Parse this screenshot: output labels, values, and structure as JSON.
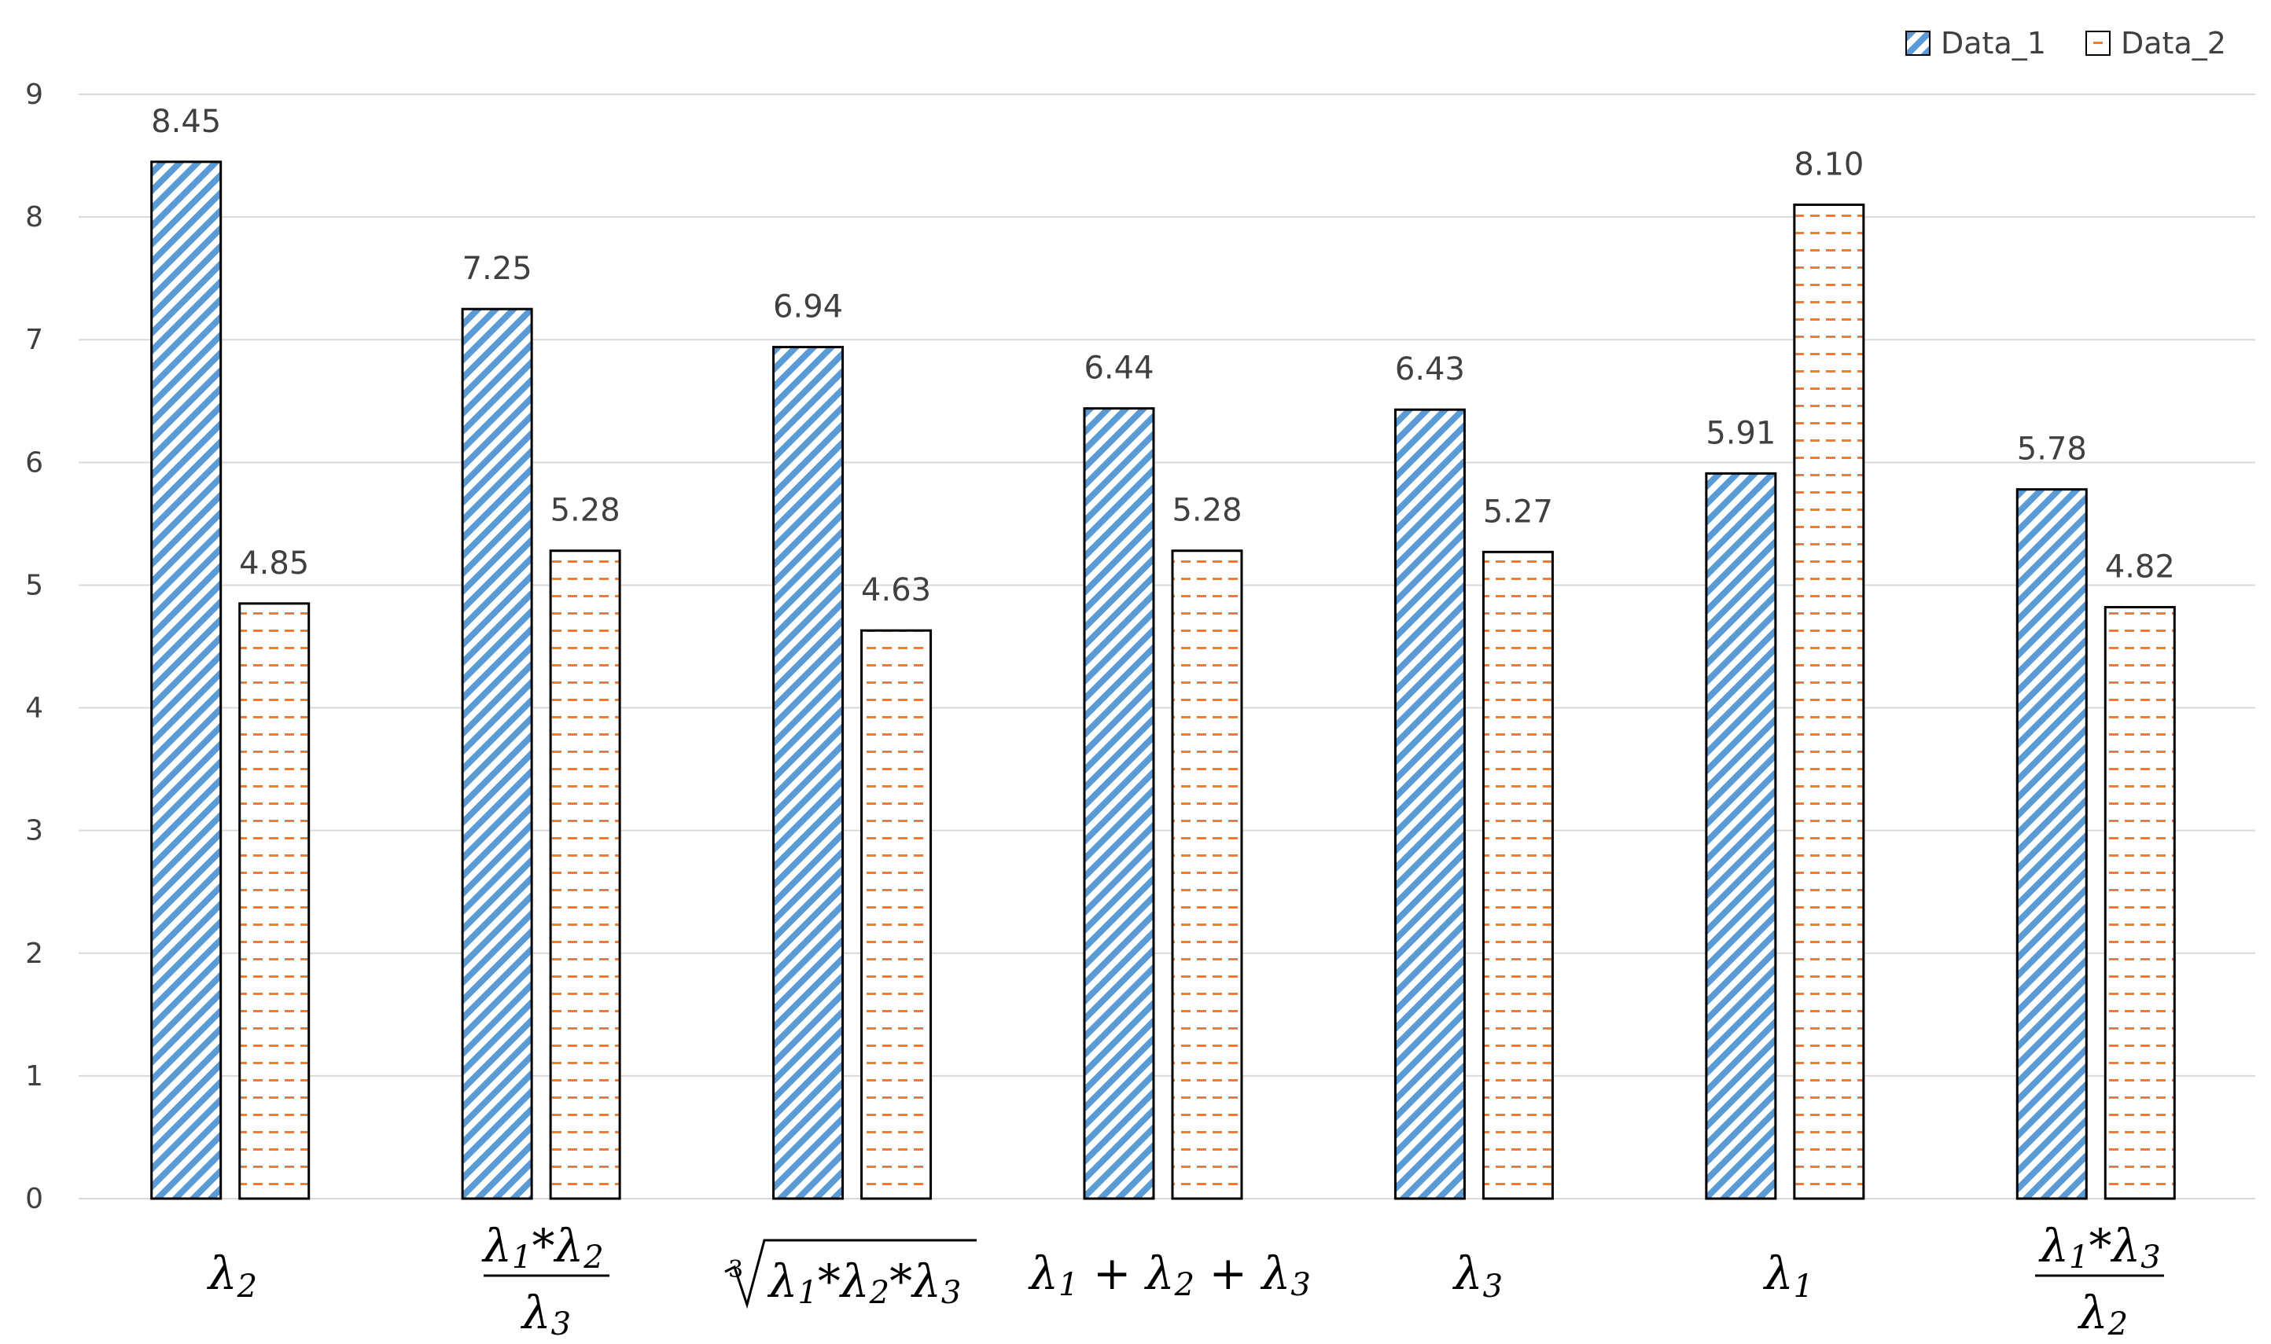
{
  "chart_data": {
    "type": "bar",
    "title": "",
    "xlabel": "",
    "ylabel": "",
    "ylim": [
      0,
      9
    ],
    "yticks": [
      0,
      1,
      2,
      3,
      4,
      5,
      6,
      7,
      8,
      9
    ],
    "grid": true,
    "legend_position": "top-right",
    "categories": [
      {
        "id": "l2",
        "label": "λ2"
      },
      {
        "id": "l1l2_over_l3",
        "label": "λ1*λ2 / λ3"
      },
      {
        "id": "cbrt",
        "label": "∛(λ1*λ2*λ3)"
      },
      {
        "id": "sum",
        "label": "λ1+λ2+λ3"
      },
      {
        "id": "l3",
        "label": "λ3"
      },
      {
        "id": "l1",
        "label": "λ1"
      },
      {
        "id": "l1l3_over_l2",
        "label": "λ1*λ3 / λ2"
      }
    ],
    "series": [
      {
        "name": "Data_1",
        "color": "#5b9bd5",
        "pattern": "diagonal-stripes",
        "values": [
          8.45,
          7.25,
          6.94,
          6.44,
          6.43,
          5.91,
          5.78
        ],
        "labels": [
          "8.45",
          "7.25",
          "6.94",
          "6.44",
          "6.43",
          "5.91",
          "5.78"
        ]
      },
      {
        "name": "Data_2",
        "color": "#ed7d31",
        "pattern": "horizontal-dashes",
        "values": [
          4.85,
          5.28,
          4.63,
          5.28,
          5.27,
          8.1,
          4.82
        ],
        "labels": [
          "4.85",
          "5.28",
          "4.63",
          "5.28",
          "5.27",
          "8.10",
          "4.82"
        ]
      }
    ]
  }
}
